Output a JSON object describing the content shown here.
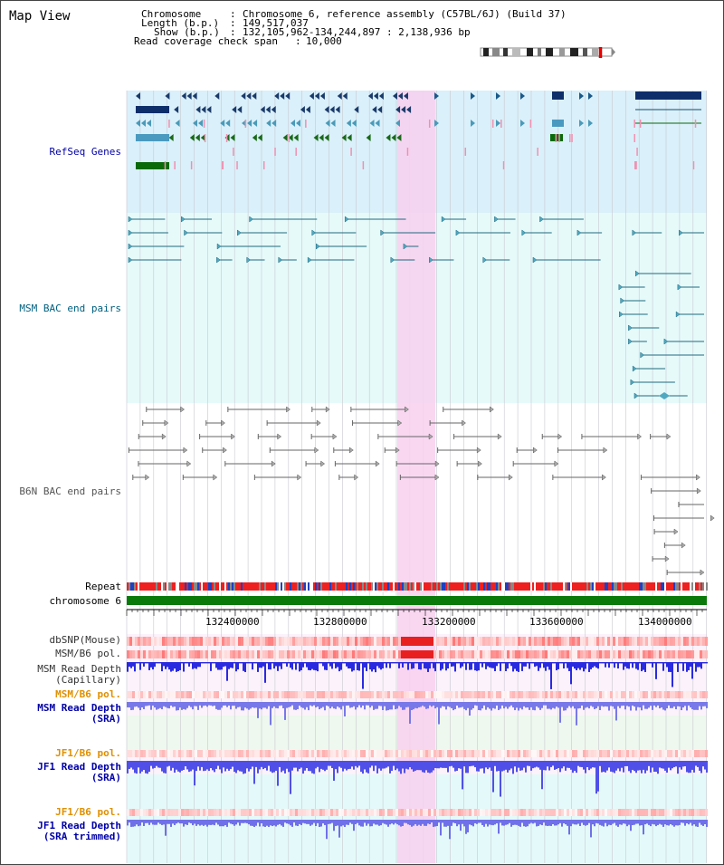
{
  "header": {
    "title": "Map View",
    "chromosome_label": "Chromosome",
    "chromosome_value": "Chromosome 6, reference assembly (C57BL/6J) (Build 37)",
    "length_label": "Length (b.p.)",
    "length_value": "149,517,037",
    "show_label": "Show (b.p.)",
    "show_value": "132,105,962-134,244,897 : 2,138,936 bp",
    "coverage_label": "Read coverage check span",
    "coverage_value": "10,000"
  },
  "tracks": {
    "refseq": "RefSeq Genes",
    "msm_bac": "MSM BAC end pairs",
    "b6n_bac": "B6N BAC end pairs",
    "repeat": "Repeat",
    "chromosome": "chromosome 6"
  },
  "axis": {
    "ticks": [
      "132400000",
      "132800000",
      "133200000",
      "133600000",
      "134000000"
    ]
  },
  "lower_tracks": [
    {
      "id": "dbsnp",
      "label": "dbSNP(Mouse)",
      "color": "#333333"
    },
    {
      "id": "msm_b6_pol",
      "label": "MSM/B6 pol.",
      "color": "#333333"
    },
    {
      "id": "msm_depth_cap",
      "label": "MSM Read Depth\n(Capillary)",
      "color": "#333333"
    },
    {
      "id": "msm_b6_pol2",
      "label": "MSM/B6 pol.",
      "color": "#e09000"
    },
    {
      "id": "msm_depth_sra",
      "label": "MSM Read Depth\n(SRA)",
      "color": "#0000aa"
    },
    {
      "id": "jf1_b6_pol",
      "label": "JF1/B6 pol.",
      "color": "#e09000"
    },
    {
      "id": "jf1_depth_sra",
      "label": "JF1 Read Depth\n(SRA)",
      "color": "#0000aa"
    },
    {
      "id": "jf1_b6_pol2",
      "label": "JF1/B6 pol.",
      "color": "#e09000"
    },
    {
      "id": "jf1_depth_trim",
      "label": "JF1 Read Depth\n(SRA trimmed)",
      "color": "#0000aa"
    }
  ],
  "colors": {
    "refseq_bg": "#daf0fa",
    "msm_bg": "#e6fafa",
    "highlight": "#f8d0ee",
    "refseq_label": "#0000aa",
    "msm_label": "#006080",
    "b6n_label": "#555555"
  }
}
